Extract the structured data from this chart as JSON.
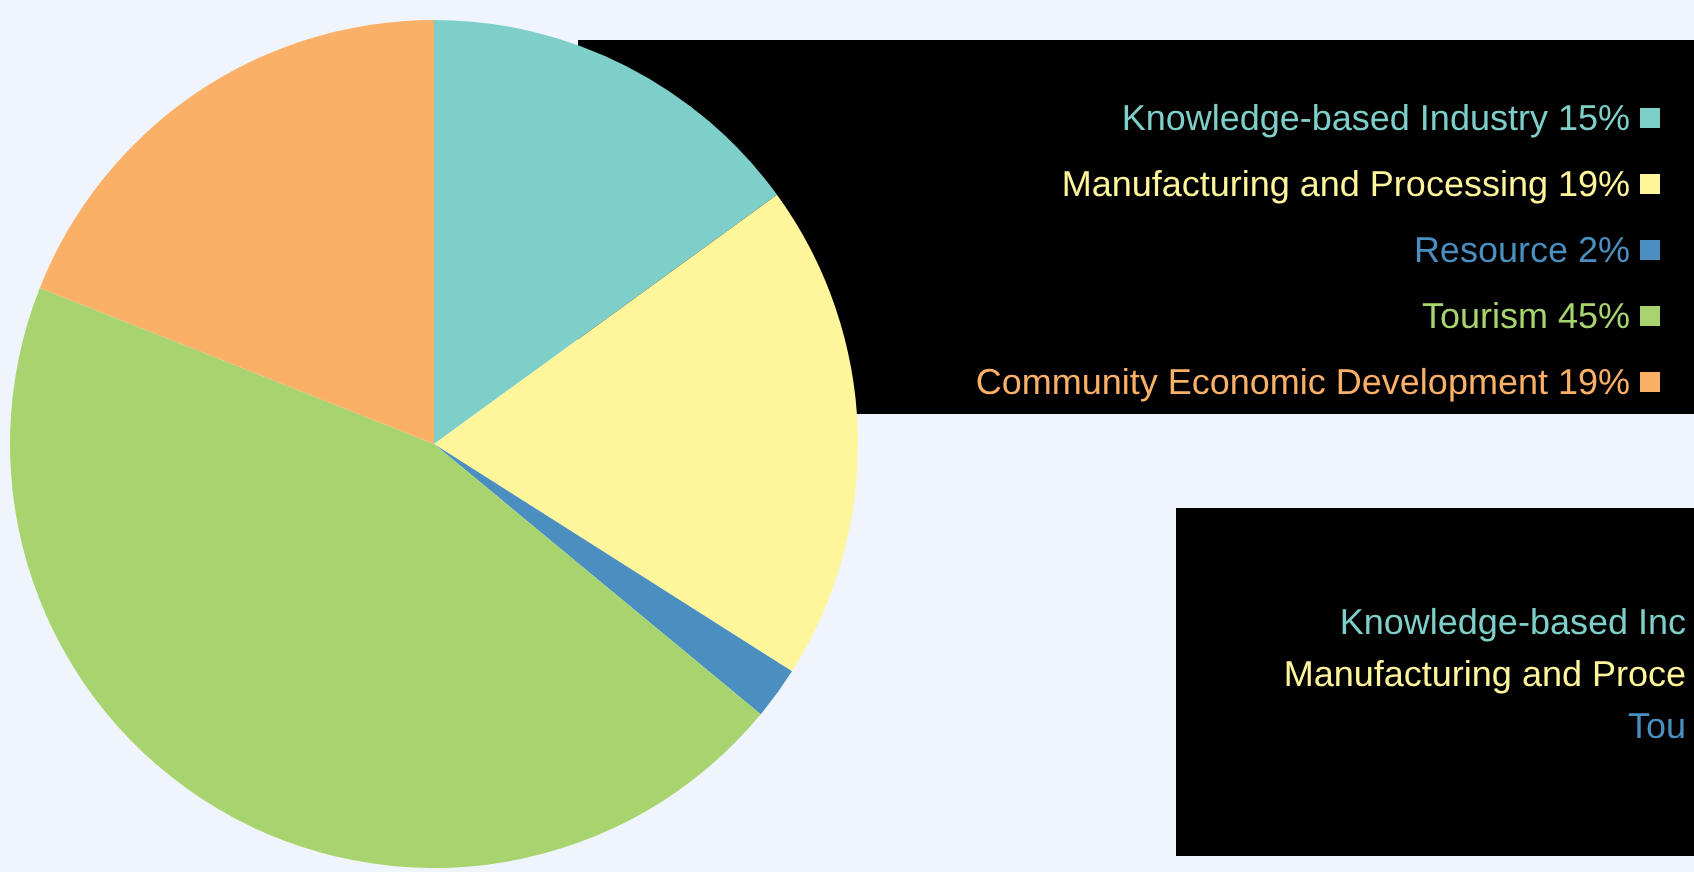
{
  "chart_data": {
    "type": "pie",
    "categories": [
      "Knowledge-based Industry",
      "Manufacturing and Processing",
      "Resource",
      "Tourism",
      "Community Economic Development"
    ],
    "values": [
      15,
      19,
      2,
      45,
      19
    ],
    "value_labels": [
      "15%",
      "19%",
      "2%",
      "45%",
      "19%"
    ],
    "colors": [
      "#7ecfc9",
      "#fff59a",
      "#4a8fc0",
      "#a8d46f",
      "#fbb068"
    ],
    "legend": "top right",
    "annotations": [
      "Knowledge-based Inc",
      "Manufacturing and Proce",
      "Tou"
    ]
  }
}
